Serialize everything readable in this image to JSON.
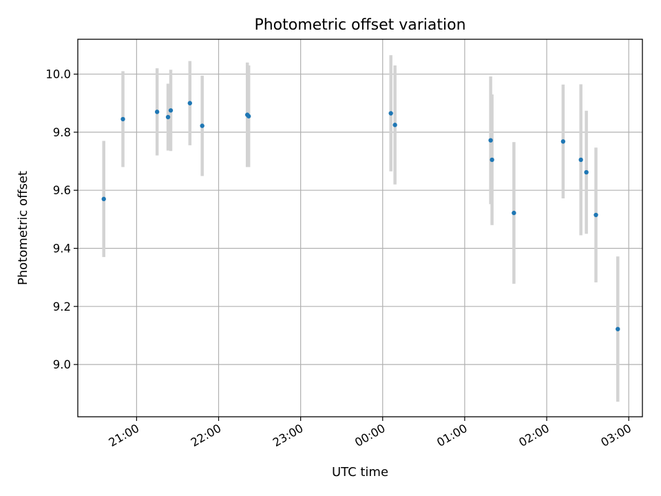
{
  "chart_data": {
    "type": "scatter",
    "title": "Photometric offset variation",
    "xlabel": "UTC time",
    "ylabel": "Photometric offset",
    "x_axis_kind": "time",
    "xlim": [
      "20:17",
      "03:10 +1d"
    ],
    "ylim": [
      8.82,
      10.12
    ],
    "grid": true,
    "x_ticks": [
      {
        "t": "21:00",
        "label": "21:00"
      },
      {
        "t": "22:00",
        "label": "22:00"
      },
      {
        "t": "23:00",
        "label": "23:00"
      },
      {
        "t": "00:00 +1d",
        "label": "00:00"
      },
      {
        "t": "01:00 +1d",
        "label": "01:00"
      },
      {
        "t": "02:00 +1d",
        "label": "02:00"
      },
      {
        "t": "03:00 +1d",
        "label": "03:00"
      }
    ],
    "y_ticks": [
      {
        "v": 9.0,
        "label": "9.0"
      },
      {
        "v": 9.2,
        "label": "9.2"
      },
      {
        "v": 9.4,
        "label": "9.4"
      },
      {
        "v": 9.6,
        "label": "9.6"
      },
      {
        "v": 9.8,
        "label": "9.8"
      },
      {
        "v": 10.0,
        "label": "10.0"
      }
    ],
    "points": [
      {
        "t": "20:36",
        "y": 9.57,
        "err": 0.2
      },
      {
        "t": "20:50",
        "y": 9.845,
        "err": 0.165
      },
      {
        "t": "21:15",
        "y": 9.87,
        "err": 0.15
      },
      {
        "t": "21:23",
        "y": 9.852,
        "err": 0.115
      },
      {
        "t": "21:25",
        "y": 9.875,
        "err": 0.14
      },
      {
        "t": "21:39",
        "y": 9.9,
        "err": 0.145
      },
      {
        "t": "21:48",
        "y": 9.822,
        "err": 0.173
      },
      {
        "t": "22:21",
        "y": 9.86,
        "err": 0.18
      },
      {
        "t": "22:22",
        "y": 9.855,
        "err": 0.175
      },
      {
        "t": "00:06 +1d",
        "y": 9.865,
        "err": 0.2
      },
      {
        "t": "00:09 +1d",
        "y": 9.825,
        "err": 0.205
      },
      {
        "t": "01:19 +1d",
        "y": 9.772,
        "err": 0.22
      },
      {
        "t": "01:20 +1d",
        "y": 9.705,
        "err": 0.225
      },
      {
        "t": "01:36 +1d",
        "y": 9.522,
        "err": 0.244
      },
      {
        "t": "02:12 +1d",
        "y": 9.768,
        "err": 0.196
      },
      {
        "t": "02:25 +1d",
        "y": 9.705,
        "err": 0.26
      },
      {
        "t": "02:29 +1d",
        "y": 9.662,
        "err": 0.212
      },
      {
        "t": "02:36 +1d",
        "y": 9.515,
        "err": 0.232
      },
      {
        "t": "02:52 +1d",
        "y": 9.122,
        "err": 0.25
      }
    ],
    "colors": {
      "marker": "#1f77b4",
      "errorbar": "#d3d3d3",
      "grid": "#b0b0b0",
      "axes": "#000000"
    }
  }
}
